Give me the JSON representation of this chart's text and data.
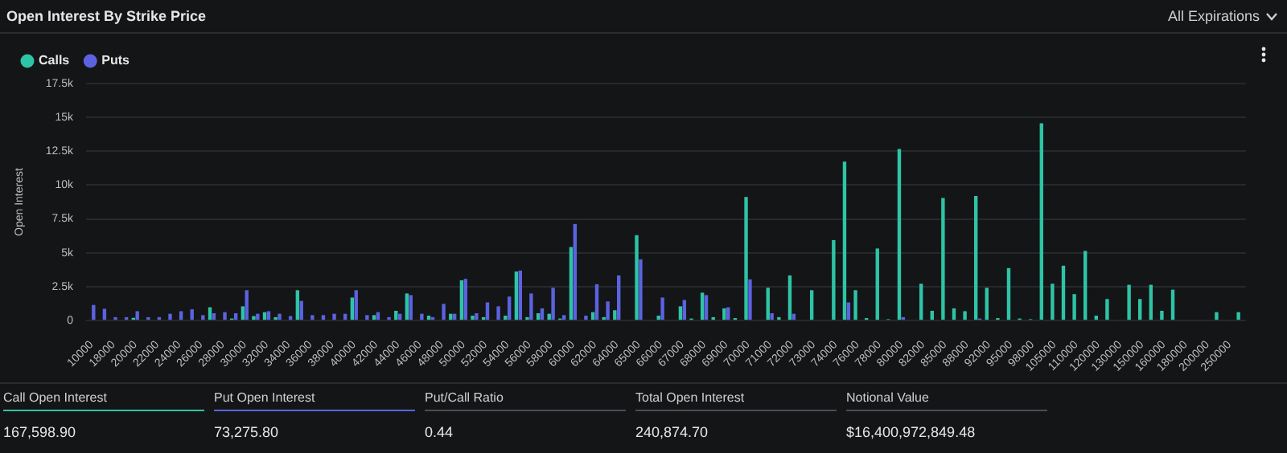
{
  "chart_data": {
    "type": "bar",
    "title": "Open Interest By Strike Price",
    "ylabel": "Open Interest",
    "categories": [
      "10000",
      null,
      "18000",
      null,
      "20000",
      null,
      "22000",
      null,
      "24000",
      null,
      "26000",
      null,
      "28000",
      null,
      "30000",
      null,
      "32000",
      null,
      "34000",
      null,
      "36000",
      null,
      "38000",
      null,
      "40000",
      null,
      "42000",
      null,
      "44000",
      null,
      "46000",
      null,
      "48000",
      null,
      "50000",
      null,
      "52000",
      null,
      "54000",
      null,
      "56000",
      null,
      "58000",
      null,
      "60000",
      null,
      "62000",
      null,
      "64000",
      null,
      "65000",
      null,
      "66000",
      null,
      "67000",
      null,
      "68000",
      null,
      "69000",
      null,
      "70000",
      null,
      "71000",
      null,
      "72000",
      null,
      "73000",
      null,
      "74000",
      null,
      "76000",
      null,
      "78000",
      null,
      "80000",
      null,
      "82000",
      null,
      "85000",
      null,
      "88000",
      null,
      "92000",
      null,
      "95000",
      null,
      "98000",
      null,
      "105000",
      null,
      "110000",
      null,
      "120000",
      null,
      "130000",
      null,
      "150000",
      null,
      "160000",
      null,
      "180000",
      null,
      "200000",
      null,
      "250000",
      null
    ],
    "series": [
      {
        "name": "Calls",
        "color": "#2ec4a6",
        "values": [
          0,
          0,
          0,
          0,
          200,
          0,
          0,
          0,
          0,
          0,
          0,
          980,
          0,
          150,
          1050,
          330,
          620,
          250,
          0,
          2240,
          0,
          0,
          0,
          0,
          1700,
          0,
          400,
          0,
          720,
          2000,
          0,
          360,
          0,
          500,
          2970,
          360,
          250,
          0,
          360,
          3620,
          250,
          540,
          500,
          150,
          5430,
          0,
          620,
          250,
          760,
          0,
          6300,
          0,
          360,
          0,
          1050,
          150,
          2060,
          250,
          900,
          180,
          9120,
          0,
          2420,
          250,
          3330,
          0,
          2240,
          0,
          5940,
          11730,
          2240,
          180,
          5320,
          100,
          12670,
          0,
          2720,
          720,
          9050,
          900,
          690,
          9190,
          2420,
          180,
          3870,
          150,
          100,
          14560,
          2720,
          4050,
          1950,
          5140,
          360,
          1590,
          0,
          2640,
          1590,
          2640,
          720,
          2280,
          0,
          0,
          0,
          620,
          0,
          620
        ]
      },
      {
        "name": "Puts",
        "color": "#5b63e0",
        "values": [
          1150,
          870,
          250,
          250,
          690,
          250,
          250,
          500,
          690,
          830,
          400,
          540,
          620,
          540,
          2240,
          500,
          690,
          500,
          330,
          1450,
          400,
          400,
          500,
          500,
          2240,
          400,
          620,
          250,
          500,
          1880,
          500,
          250,
          1230,
          500,
          3080,
          540,
          1340,
          1050,
          1770,
          3690,
          2000,
          900,
          2420,
          400,
          7130,
          360,
          2680,
          1410,
          3330,
          0,
          4520,
          0,
          1700,
          0,
          1520,
          0,
          1880,
          0,
          980,
          0,
          3040,
          0,
          540,
          0,
          500,
          0,
          0,
          0,
          0,
          1340,
          0,
          0,
          0,
          0,
          250,
          0,
          0,
          0,
          0,
          0,
          0,
          150,
          0,
          0,
          0,
          0,
          0,
          0,
          0,
          0,
          0,
          0,
          0,
          0,
          0,
          0,
          0,
          0,
          0,
          0,
          0,
          0,
          0,
          0,
          0,
          0
        ]
      }
    ],
    "ylim": [
      0,
      17500
    ],
    "yticks": [
      0,
      {
        "value": 2500,
        "label": "2.5k"
      },
      {
        "value": 5000,
        "label": "5k"
      },
      {
        "value": 7500,
        "label": "7.5k"
      },
      {
        "value": 10000,
        "label": "10k"
      },
      {
        "value": 12500,
        "label": "12.5k"
      },
      {
        "value": 15000,
        "label": "15k"
      },
      {
        "value": 17500,
        "label": "17.5k"
      }
    ],
    "grid": "y",
    "legend": "top left",
    "annotations": [
      "All Expirations",
      "Call Open Interest",
      "167,598.90",
      "Put Open Interest",
      "73,275.80",
      "Put/Call Ratio",
      "0.44",
      "Total Open Interest",
      "240,874.70",
      "Notional Value",
      "$16,400,972,849.48"
    ]
  }
}
